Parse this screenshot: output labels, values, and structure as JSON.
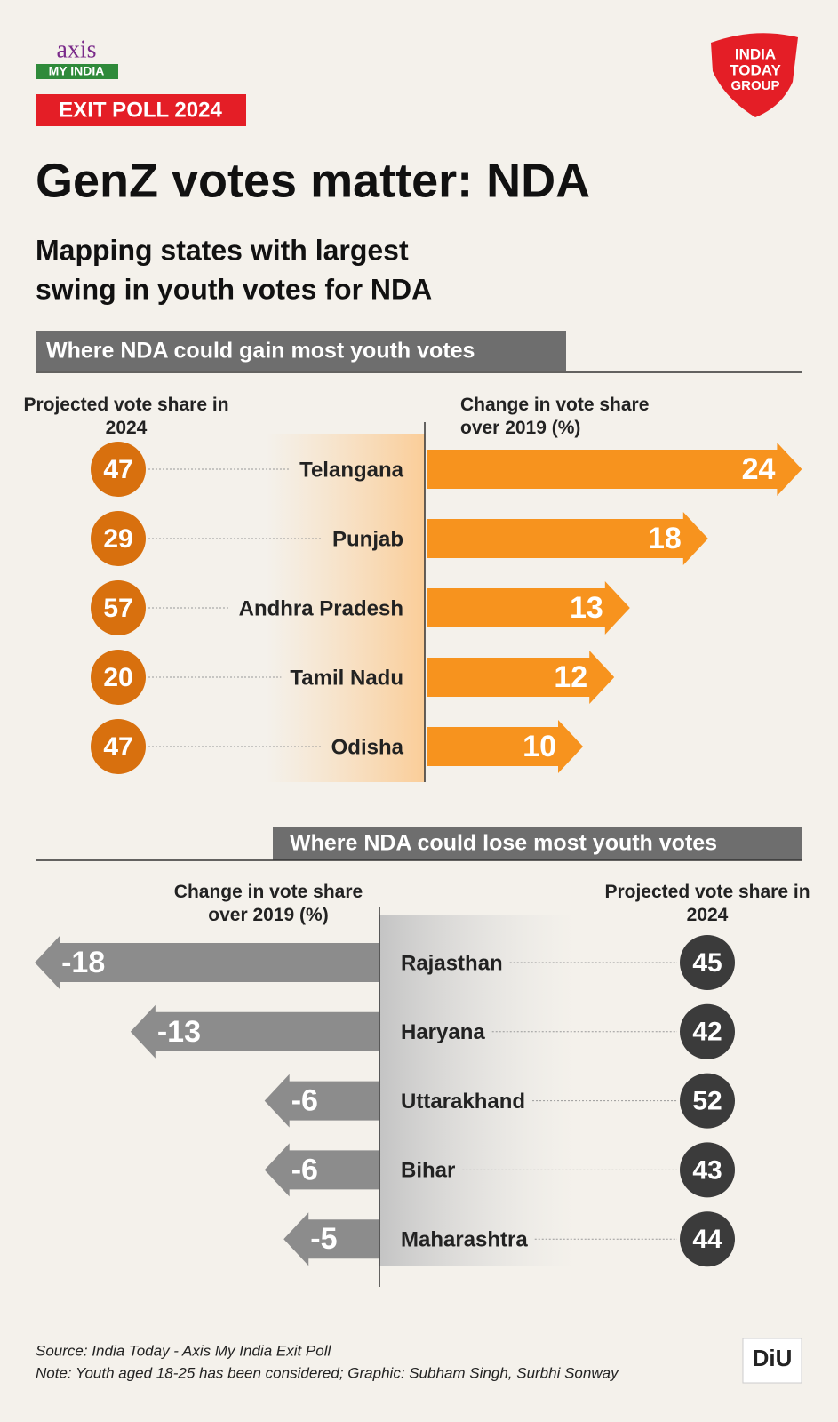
{
  "header": {
    "brand": "axis",
    "brand_sub": "MY INDIA",
    "badge": "EXIT POLL 2024",
    "publisher": [
      "INDIA",
      "TODAY",
      "GROUP"
    ],
    "title": "GenZ votes matter: NDA",
    "subtitle": [
      "Mapping states with largest",
      "swing in youth votes for NDA"
    ]
  },
  "chart_data": [
    {
      "type": "bar",
      "orientation": "horizontal",
      "title": "Where NDA could gain most youth votes",
      "categories": [
        "Telangana",
        "Punjab",
        "Andhra Pradesh",
        "Tamil Nadu",
        "Odisha"
      ],
      "series": [
        {
          "name": "Change in vote share over 2019 (%)",
          "color": "#f7931e",
          "values": [
            24,
            18,
            13,
            12,
            10
          ]
        },
        {
          "name": "Projected vote share in 2024",
          "color": "#d8700e",
          "values": [
            47,
            29,
            57,
            20,
            47
          ]
        }
      ]
    },
    {
      "type": "bar",
      "orientation": "horizontal",
      "title": "Where NDA could lose most youth votes",
      "categories": [
        "Rajasthan",
        "Haryana",
        "Uttarakhand",
        "Bihar",
        "Maharashtra"
      ],
      "series": [
        {
          "name": "Change in vote share over 2019 (%)",
          "color": "#8c8c8c",
          "values": [
            -18,
            -13,
            -6,
            -6,
            -5
          ]
        },
        {
          "name": "Projected vote share in 2024",
          "color": "#3b3b3b",
          "values": [
            45,
            42,
            52,
            43,
            44
          ]
        }
      ]
    }
  ],
  "footer": {
    "source": "Source: India Today - Axis My India Exit Poll",
    "note": "Note: Youth aged 18-25 has been considered; Graphic: Subham Singh, Surbhi Sonway",
    "logo": "DiU"
  }
}
